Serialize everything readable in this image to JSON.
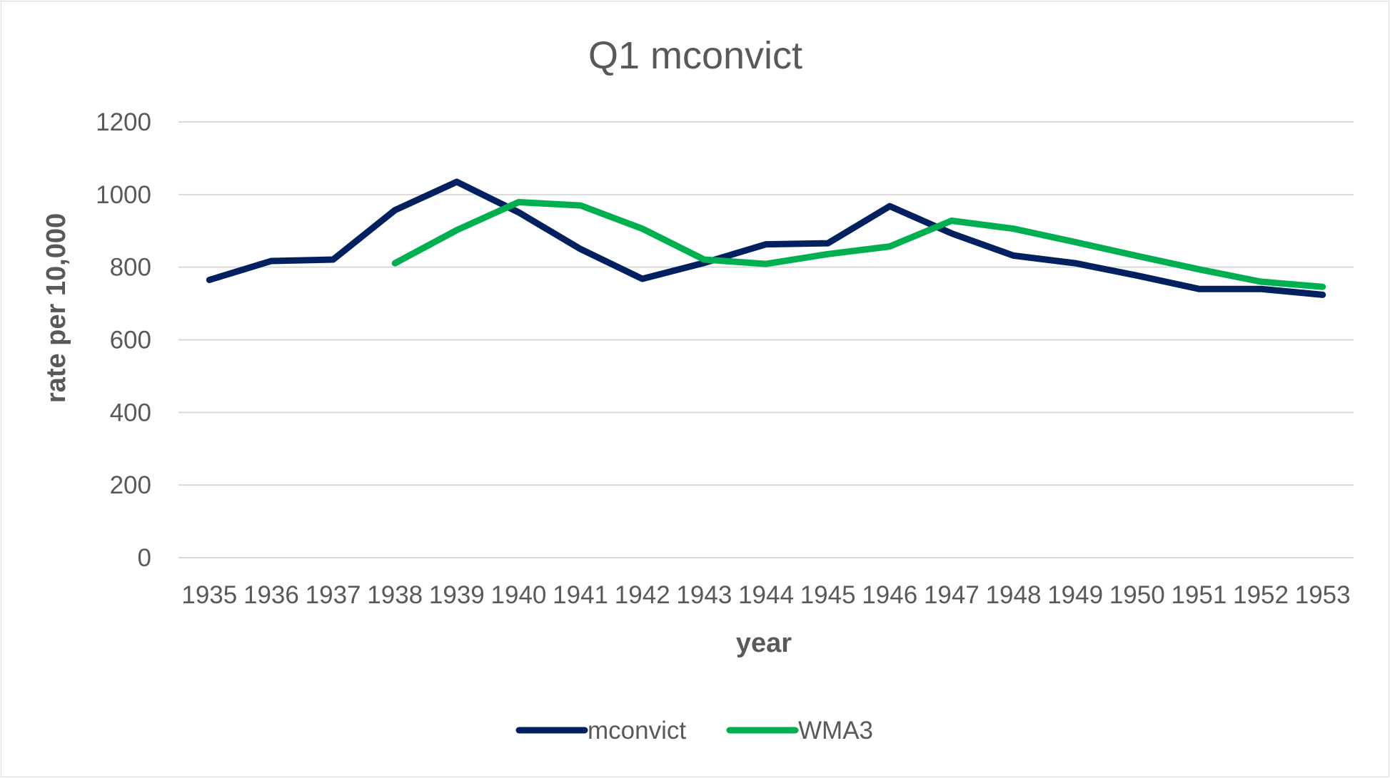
{
  "chart_data": {
    "type": "line",
    "title": "Q1 mconvict",
    "xlabel": "year",
    "ylabel": "rate  per 10,000",
    "ylim": [
      0,
      1200
    ],
    "yticks": [
      0,
      200,
      400,
      600,
      800,
      1000,
      1200
    ],
    "x": [
      1935,
      1936,
      1937,
      1938,
      1939,
      1940,
      1941,
      1942,
      1943,
      1944,
      1945,
      1946,
      1947,
      1948,
      1949,
      1950,
      1951,
      1952,
      1953
    ],
    "grid": true,
    "legend": "bottom",
    "series": [
      {
        "name": "mconvict",
        "color": "#002060",
        "values": [
          765,
          817,
          821,
          957,
          1035,
          951,
          850,
          768,
          812,
          863,
          866,
          968,
          893,
          832,
          811,
          777,
          740,
          740,
          724
        ]
      },
      {
        "name": "WMA3",
        "color": "#00b050",
        "values": [
          null,
          null,
          null,
          811,
          902,
          979,
          970,
          906,
          821,
          809,
          836,
          857,
          928,
          906,
          869,
          831,
          794,
          760,
          746
        ]
      }
    ]
  }
}
